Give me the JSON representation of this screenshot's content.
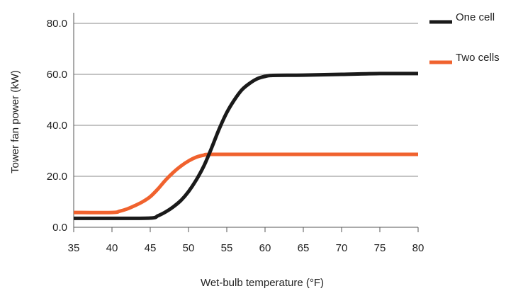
{
  "chart_data": {
    "type": "line",
    "title": "",
    "xlabel": "Wet-bulb temperature (°F)",
    "ylabel": "Tower fan power (kW)",
    "xlim": [
      35,
      80
    ],
    "ylim": [
      0,
      80
    ],
    "x_ticks": [
      "35",
      "40",
      "45",
      "50",
      "55",
      "60",
      "65",
      "70",
      "75",
      "80"
    ],
    "y_ticks": [
      "0.0",
      "20.0",
      "40.0",
      "60.0",
      "80.0"
    ],
    "grid": "horizontal",
    "legend_position": "right",
    "series": [
      {
        "name": "One cell",
        "color": "#1a1a1a",
        "points": [
          [
            35,
            3.5
          ],
          [
            40,
            3.5
          ],
          [
            45,
            3.6
          ],
          [
            46,
            4.5
          ],
          [
            47,
            6
          ],
          [
            48,
            8
          ],
          [
            49,
            10.5
          ],
          [
            50,
            14
          ],
          [
            51,
            18.5
          ],
          [
            52,
            24
          ],
          [
            53,
            31
          ],
          [
            54,
            38.5
          ],
          [
            55,
            45
          ],
          [
            56,
            50
          ],
          [
            57,
            54
          ],
          [
            58,
            56.5
          ],
          [
            59,
            58.3
          ],
          [
            60,
            59.2
          ],
          [
            61,
            59.6
          ],
          [
            65,
            59.7
          ],
          [
            70,
            60.0
          ],
          [
            75,
            60.3
          ],
          [
            80,
            60.3
          ]
        ]
      },
      {
        "name": "Two cells",
        "color": "#f0622e",
        "points": [
          [
            35,
            5.8
          ],
          [
            40,
            5.8
          ],
          [
            41,
            6.3
          ],
          [
            42,
            7.2
          ],
          [
            43,
            8.5
          ],
          [
            44,
            10
          ],
          [
            45,
            12
          ],
          [
            46,
            15
          ],
          [
            47,
            18.5
          ],
          [
            48,
            21.5
          ],
          [
            49,
            24
          ],
          [
            50,
            26
          ],
          [
            51,
            27.5
          ],
          [
            52,
            28.3
          ],
          [
            53,
            28.6
          ],
          [
            60,
            28.6
          ],
          [
            70,
            28.6
          ],
          [
            80,
            28.6
          ]
        ]
      }
    ]
  }
}
